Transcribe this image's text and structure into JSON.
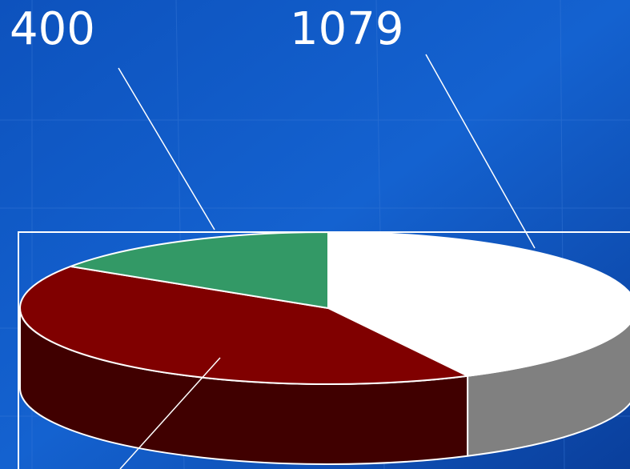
{
  "chart_data": {
    "type": "pie3d",
    "values": [
      1079,
      1058,
      400
    ],
    "value_labels": [
      "1079",
      null,
      "400"
    ],
    "colors": [
      "#ffffff",
      "#800000",
      "#339966"
    ],
    "side_colors": [
      "#808080",
      "#400000",
      "#1a4d33"
    ]
  }
}
